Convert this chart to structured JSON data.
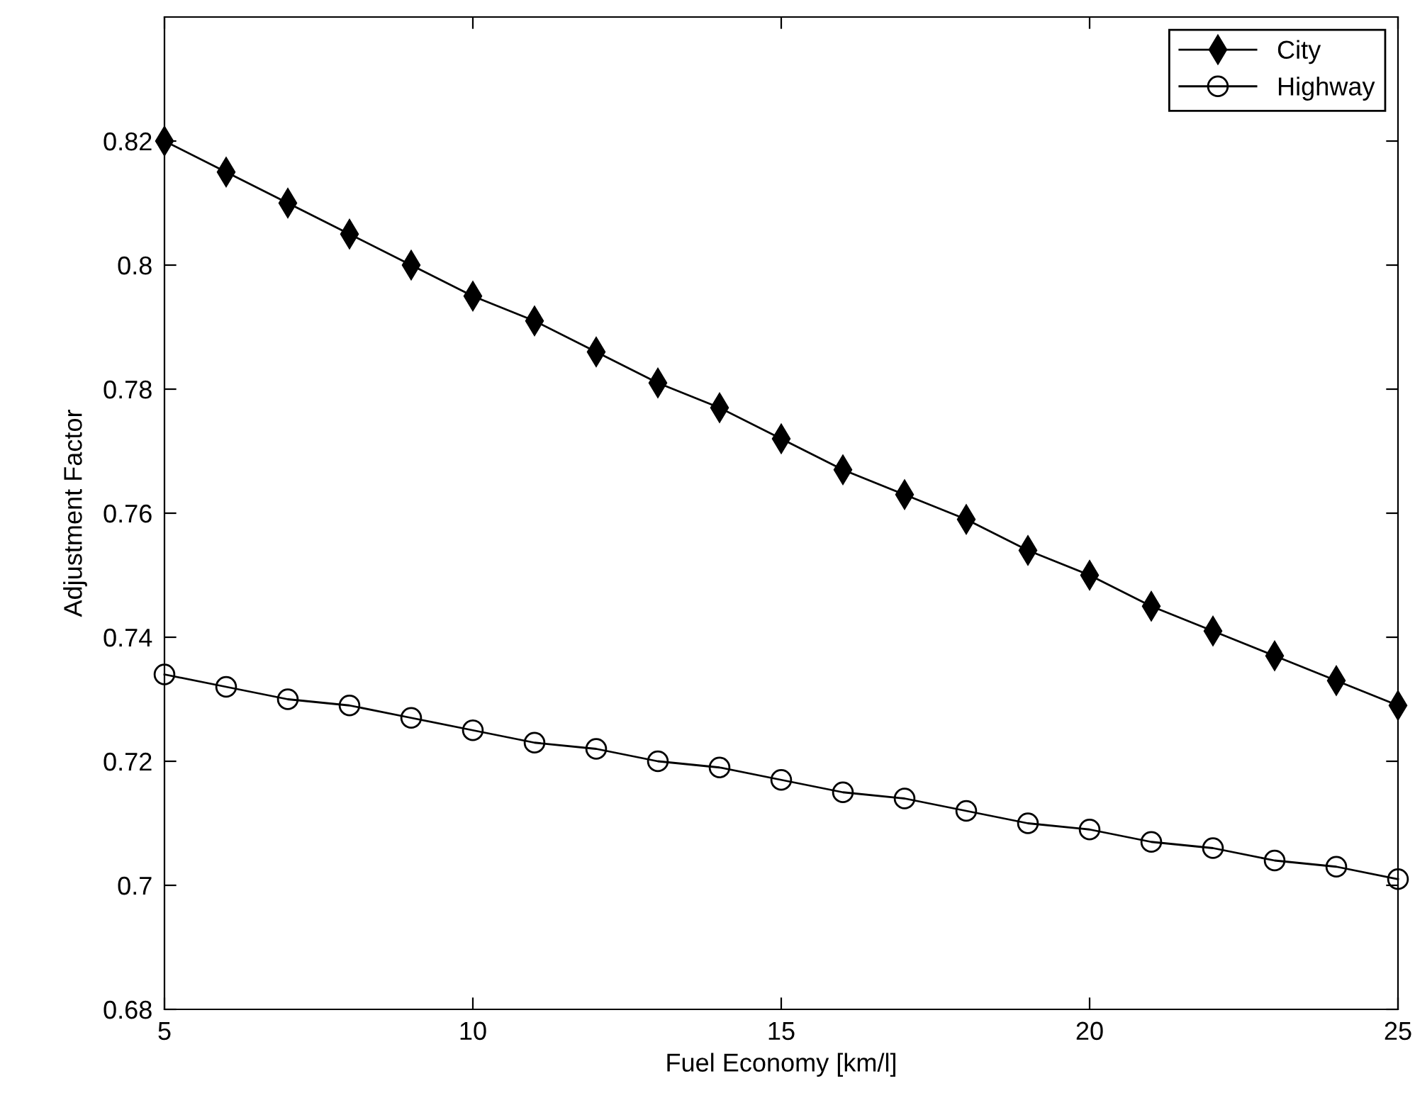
{
  "chart_data": {
    "type": "line",
    "xlabel": "Fuel Economy [km/l]",
    "ylabel": "Adjustment Factor",
    "x": [
      5,
      6,
      7,
      8,
      9,
      10,
      11,
      12,
      13,
      14,
      15,
      16,
      17,
      18,
      19,
      20,
      21,
      22,
      23,
      24,
      25
    ],
    "series": [
      {
        "name": "City",
        "color": "#000000",
        "marker": "diamond",
        "values": [
          0.82,
          0.815,
          0.81,
          0.805,
          0.8,
          0.795,
          0.791,
          0.786,
          0.781,
          0.777,
          0.772,
          0.767,
          0.763,
          0.759,
          0.754,
          0.75,
          0.745,
          0.741,
          0.737,
          0.733,
          0.729
        ]
      },
      {
        "name": "Highway",
        "color": "#000000",
        "marker": "circle",
        "values": [
          0.734,
          0.732,
          0.73,
          0.729,
          0.727,
          0.725,
          0.723,
          0.722,
          0.72,
          0.719,
          0.717,
          0.715,
          0.714,
          0.712,
          0.71,
          0.709,
          0.707,
          0.706,
          0.704,
          0.703,
          0.701
        ]
      }
    ],
    "xlim": [
      5,
      25
    ],
    "xticks": [
      5,
      10,
      15,
      20,
      25
    ],
    "ylim": [
      0.68,
      0.84
    ],
    "yticks": [
      0.68,
      {
        "value": 0.7,
        "label": "0.7"
      },
      0.72,
      0.74,
      0.76,
      0.78,
      {
        "value": 0.8,
        "label": "0.8"
      },
      0.82
    ],
    "legend": "top right",
    "grid": false,
    "line_style": "solid"
  }
}
